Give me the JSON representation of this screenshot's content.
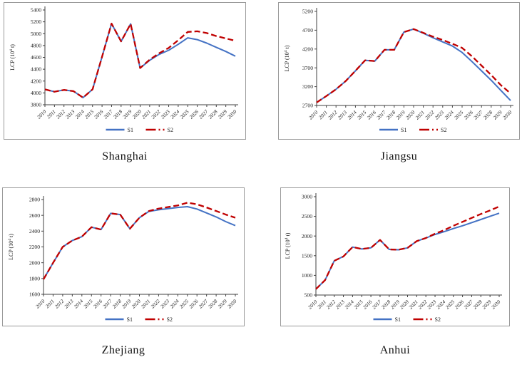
{
  "figure": {
    "legend": {
      "s1_label": "S1",
      "s2_label": "S2"
    },
    "colors": {
      "s1_blue": "#4472C4",
      "s2_red": "#C00000",
      "axis": "#404040",
      "box_border": "#9a9a9a"
    }
  },
  "chart_data": [
    {
      "type": "line",
      "title": "Shanghai",
      "ylabel": {
        "prefix": "LCP (10",
        "sup": "4",
        "suffix": " t)"
      },
      "x": [
        2010,
        2011,
        2012,
        2013,
        2014,
        2015,
        2016,
        2017,
        2018,
        2019,
        2020,
        2021,
        2022,
        2023,
        2024,
        2025,
        2026,
        2027,
        2028,
        2029,
        2030
      ],
      "ylim": [
        3800,
        5400
      ],
      "yticks": [
        3800,
        4000,
        4200,
        4400,
        4600,
        4800,
        5000,
        5200,
        5400
      ],
      "legend_position": "bottom",
      "series": [
        {
          "name": "S1",
          "color": "#4472C4",
          "style": "solid",
          "values": [
            4060,
            4020,
            4050,
            4030,
            3920,
            4060,
            4610,
            5170,
            4870,
            5165,
            4420,
            4550,
            4650,
            4720,
            4820,
            4930,
            4900,
            4840,
            4770,
            4700,
            4620
          ]
        },
        {
          "name": "S2",
          "color": "#C00000",
          "style": "dashed",
          "values": [
            4060,
            4020,
            4050,
            4030,
            3920,
            4060,
            4610,
            5170,
            4870,
            5165,
            4420,
            4560,
            4670,
            4760,
            4890,
            5030,
            5040,
            5010,
            4960,
            4920,
            4880
          ]
        }
      ]
    },
    {
      "type": "line",
      "title": "Jiangsu",
      "ylabel": {
        "prefix": "LCP (10",
        "sup": "4",
        "suffix": " t)"
      },
      "x": [
        2010,
        2011,
        2012,
        2013,
        2014,
        2015,
        2016,
        2017,
        2018,
        2019,
        2020,
        2021,
        2022,
        2023,
        2024,
        2025,
        2026,
        2027,
        2028,
        2029,
        2030
      ],
      "ylim": [
        2700,
        5200
      ],
      "yticks": [
        2700,
        3200,
        3700,
        4200,
        4700,
        5200
      ],
      "legend_position": "bottom",
      "series": [
        {
          "name": "S1",
          "color": "#4472C4",
          "style": "solid",
          "values": [
            2780,
            2950,
            3130,
            3350,
            3620,
            3900,
            3880,
            4180,
            4180,
            4650,
            4730,
            4620,
            4500,
            4390,
            4280,
            4110,
            3870,
            3620,
            3370,
            3100,
            2830
          ]
        },
        {
          "name": "S2",
          "color": "#C00000",
          "style": "dashed",
          "values": [
            2780,
            2950,
            3130,
            3350,
            3620,
            3900,
            3880,
            4180,
            4180,
            4650,
            4730,
            4630,
            4530,
            4440,
            4340,
            4230,
            4010,
            3760,
            3510,
            3240,
            3020
          ]
        }
      ]
    },
    {
      "type": "line",
      "title": "Zhejiang",
      "ylabel": {
        "prefix": "LCP (10",
        "sup": "4",
        "suffix": " t)"
      },
      "x": [
        2010,
        2011,
        2012,
        2013,
        2014,
        2015,
        2016,
        2017,
        2018,
        2019,
        2020,
        2021,
        2022,
        2023,
        2024,
        2025,
        2026,
        2027,
        2028,
        2029,
        2030
      ],
      "ylim": [
        1600,
        2800
      ],
      "yticks": [
        1600,
        1800,
        2000,
        2200,
        2400,
        2600,
        2800
      ],
      "legend_position": "bottom",
      "series": [
        {
          "name": "S1",
          "color": "#4472C4",
          "style": "solid",
          "values": [
            1790,
            2000,
            2200,
            2280,
            2330,
            2450,
            2420,
            2625,
            2610,
            2430,
            2570,
            2650,
            2670,
            2685,
            2700,
            2710,
            2680,
            2630,
            2580,
            2520,
            2470
          ]
        },
        {
          "name": "S2",
          "color": "#C00000",
          "style": "dashed",
          "values": [
            1790,
            2000,
            2200,
            2280,
            2330,
            2450,
            2420,
            2625,
            2610,
            2430,
            2570,
            2655,
            2685,
            2705,
            2725,
            2760,
            2740,
            2700,
            2655,
            2610,
            2570
          ]
        }
      ]
    },
    {
      "type": "line",
      "title": "Anhui",
      "ylabel": {
        "prefix": "LCP (10",
        "sup": "4",
        "suffix": " t)"
      },
      "x": [
        2010,
        2011,
        2012,
        2013,
        2014,
        2015,
        2016,
        2017,
        2018,
        2019,
        2020,
        2021,
        2022,
        2023,
        2024,
        2025,
        2026,
        2027,
        2028,
        2029,
        2030
      ],
      "ylim": [
        500,
        3000
      ],
      "yticks": [
        500,
        1000,
        1500,
        2000,
        2500,
        3000
      ],
      "legend_position": "bottom",
      "series": [
        {
          "name": "S1",
          "color": "#4472C4",
          "style": "solid",
          "values": [
            650,
            880,
            1370,
            1480,
            1720,
            1670,
            1700,
            1900,
            1660,
            1650,
            1700,
            1870,
            1950,
            2040,
            2110,
            2190,
            2260,
            2340,
            2420,
            2500,
            2580
          ]
        },
        {
          "name": "S2",
          "color": "#C00000",
          "style": "dashed",
          "values": [
            650,
            880,
            1370,
            1480,
            1720,
            1670,
            1700,
            1900,
            1660,
            1650,
            1700,
            1870,
            1950,
            2060,
            2150,
            2260,
            2360,
            2460,
            2560,
            2650,
            2750
          ]
        }
      ]
    }
  ]
}
